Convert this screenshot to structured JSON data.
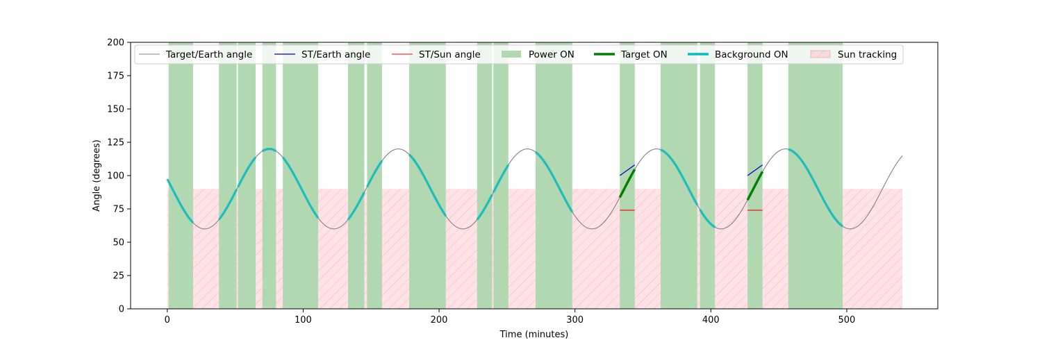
{
  "chart_data": {
    "type": "line",
    "title": "",
    "xlabel": "Time (minutes)",
    "ylabel": "Angle (degrees)",
    "xlim": [
      -27,
      567
    ],
    "ylim": [
      0,
      200
    ],
    "x_ticks": [
      0,
      100,
      200,
      300,
      400,
      500
    ],
    "y_ticks": [
      0,
      25,
      50,
      75,
      100,
      125,
      150,
      175,
      200
    ],
    "grid": false,
    "legend_position": "top",
    "series": [
      {
        "name": "Target/Earth angle",
        "kind": "line",
        "color": "#808080",
        "model": {
          "x_start": 0,
          "x_end": 541,
          "center": 90,
          "amplitude": 30,
          "period": 95,
          "peak_at": 75
        }
      },
      {
        "name": "ST/Earth angle",
        "kind": "line",
        "color": "#0000cc",
        "segments": [
          {
            "x": [
              333,
              344
            ],
            "y": [
              100,
              108
            ]
          },
          {
            "x": [
              427,
              438
            ],
            "y": [
              100,
              108
            ]
          }
        ]
      },
      {
        "name": "ST/Sun angle",
        "kind": "line",
        "color": "#ff0000",
        "segments": [
          {
            "x": [
              333,
              344
            ],
            "y": [
              74,
              74
            ]
          },
          {
            "x": [
              427,
              438
            ],
            "y": [
              74,
              74
            ]
          }
        ]
      },
      {
        "name": "Power ON",
        "kind": "span",
        "color": "#b2d8b2",
        "intervals": [
          [
            1,
            19
          ],
          [
            38,
            51
          ],
          [
            52,
            65
          ],
          [
            70,
            80
          ],
          [
            85,
            111
          ],
          [
            133,
            145
          ],
          [
            147,
            158
          ],
          [
            178,
            205
          ],
          [
            228,
            239
          ],
          [
            240,
            251
          ],
          [
            271,
            298
          ],
          [
            333,
            344
          ],
          [
            363,
            390
          ],
          [
            392,
            403
          ],
          [
            427,
            438
          ],
          [
            457,
            497
          ]
        ]
      },
      {
        "name": "Target ON",
        "kind": "segment",
        "color": "#008000",
        "intervals": [
          [
            333,
            344
          ],
          [
            427,
            438
          ]
        ]
      },
      {
        "name": "Background ON",
        "kind": "segment",
        "color": "#00bfbf",
        "intervals": [
          [
            0,
            19
          ],
          [
            38,
            51
          ],
          [
            52,
            65
          ],
          [
            70,
            80
          ],
          [
            85,
            111
          ],
          [
            133,
            145
          ],
          [
            147,
            158
          ],
          [
            178,
            205
          ],
          [
            228,
            239
          ],
          [
            240,
            251
          ],
          [
            271,
            298
          ],
          [
            363,
            390
          ],
          [
            392,
            403
          ],
          [
            457,
            497
          ]
        ]
      },
      {
        "name": "Sun tracking",
        "kind": "band",
        "color": "#ffb6c1",
        "x_range": [
          0,
          541
        ],
        "y_range": [
          0,
          90
        ]
      }
    ]
  }
}
